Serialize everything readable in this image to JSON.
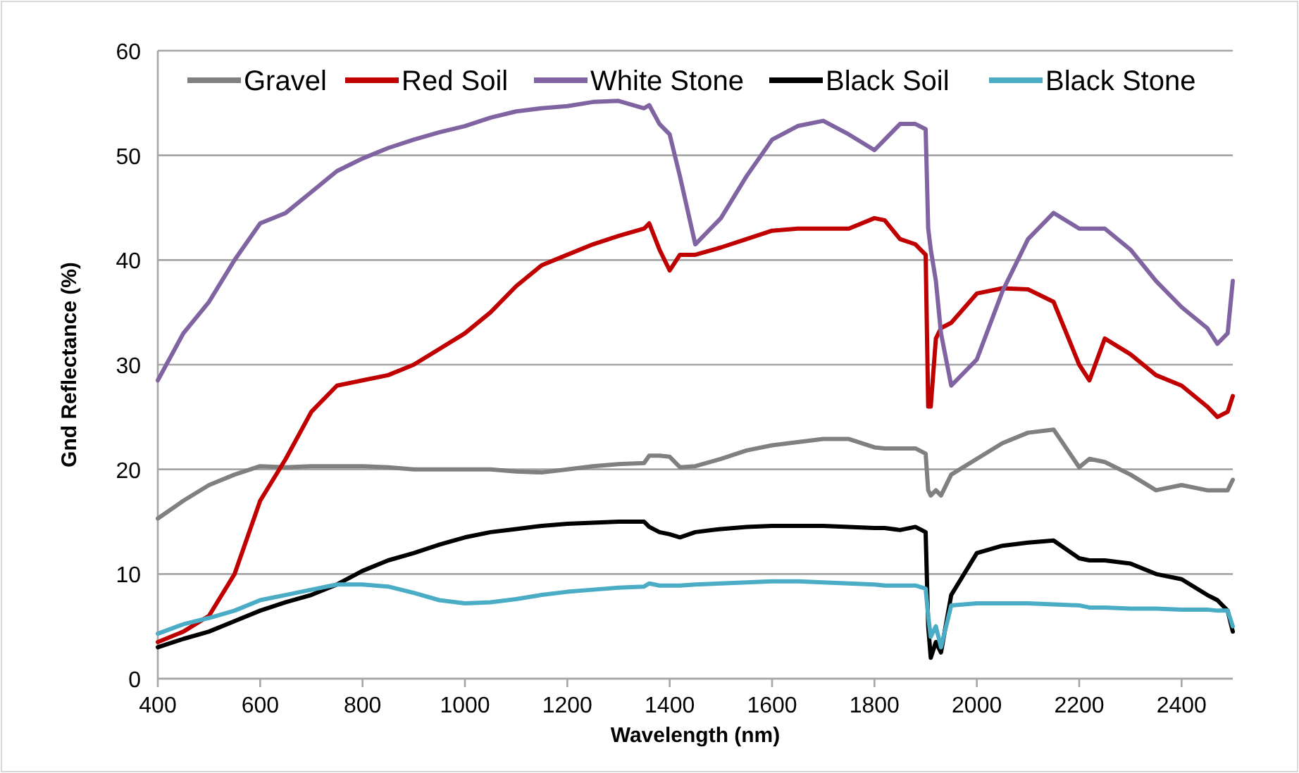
{
  "chart_data": {
    "type": "line",
    "xlabel": "Wavelength (nm)",
    "ylabel": "Gnd Reflectance (%)",
    "x": [
      400,
      450,
      500,
      550,
      600,
      650,
      700,
      750,
      800,
      850,
      900,
      950,
      1000,
      1050,
      1100,
      1150,
      1200,
      1250,
      1300,
      1350,
      1360,
      1380,
      1400,
      1420,
      1450,
      1500,
      1550,
      1600,
      1650,
      1700,
      1750,
      1800,
      1820,
      1850,
      1880,
      1900,
      1905,
      1910,
      1920,
      1930,
      1950,
      2000,
      2050,
      2100,
      2150,
      2200,
      2220,
      2250,
      2300,
      2350,
      2400,
      2450,
      2470,
      2490,
      2500
    ],
    "series": [
      {
        "name": "Gravel",
        "color": "#808080",
        "values": [
          15.3,
          17,
          18.5,
          19.5,
          20.3,
          20.2,
          20.3,
          20.3,
          20.3,
          20.2,
          20,
          20,
          20,
          20,
          19.8,
          19.7,
          20,
          20.3,
          20.5,
          20.6,
          21.3,
          21.3,
          21.2,
          20.2,
          20.3,
          21,
          21.8,
          22.3,
          22.6,
          22.9,
          22.9,
          22.1,
          22,
          22,
          22,
          21.5,
          18,
          17.5,
          18,
          17.5,
          19.5,
          21,
          22.5,
          23.5,
          23.8,
          20.2,
          21,
          20.7,
          19.5,
          18,
          18.5,
          18,
          18,
          18,
          19
        ]
      },
      {
        "name": "Red Soil",
        "color": "#c00000",
        "values": [
          3.5,
          4.5,
          6,
          10,
          17,
          21,
          25.5,
          28,
          28.5,
          29,
          30,
          31.5,
          33,
          35,
          37.5,
          39.5,
          40.5,
          41.5,
          42.3,
          43,
          43.5,
          41,
          39,
          40.5,
          40.5,
          41.2,
          42,
          42.8,
          43,
          43,
          43,
          44,
          43.8,
          42,
          41.5,
          40.5,
          26,
          26,
          32.5,
          33.5,
          34,
          36.8,
          37.3,
          37.2,
          36,
          30,
          28.5,
          32.5,
          31,
          29,
          28,
          26,
          25,
          25.5,
          27
        ]
      },
      {
        "name": "White Stone",
        "color": "#8064a2",
        "values": [
          28.5,
          33,
          36,
          40,
          43.5,
          44.5,
          46.5,
          48.5,
          49.7,
          50.7,
          51.5,
          52.2,
          52.8,
          53.6,
          54.2,
          54.5,
          54.7,
          55.1,
          55.2,
          54.5,
          54.8,
          53,
          52,
          48,
          41.5,
          44,
          48,
          51.5,
          52.8,
          53.3,
          52,
          50.5,
          51.5,
          53,
          53,
          52.5,
          43,
          41,
          38,
          33,
          28,
          30.5,
          37,
          42,
          44.5,
          43,
          43,
          43,
          41,
          38,
          35.5,
          33.5,
          32,
          33,
          38
        ]
      },
      {
        "name": "Black Soil",
        "color": "#000000",
        "values": [
          3,
          3.8,
          4.5,
          5.5,
          6.5,
          7.3,
          8,
          9,
          10.3,
          11.3,
          12,
          12.8,
          13.5,
          14,
          14.3,
          14.6,
          14.8,
          14.9,
          15,
          15,
          14.5,
          14,
          13.8,
          13.5,
          14,
          14.3,
          14.5,
          14.6,
          14.6,
          14.6,
          14.5,
          14.4,
          14.4,
          14.2,
          14.5,
          14,
          5,
          2,
          3.5,
          2.5,
          8,
          12,
          12.7,
          13,
          13.2,
          11.5,
          11.3,
          11.3,
          11,
          10,
          9.5,
          8,
          7.5,
          6.5,
          4.5
        ]
      },
      {
        "name": "Black Stone",
        "color": "#4bacc6",
        "values": [
          4.3,
          5.2,
          5.8,
          6.5,
          7.5,
          8,
          8.5,
          9,
          9,
          8.8,
          8.2,
          7.5,
          7.2,
          7.3,
          7.6,
          8,
          8.3,
          8.5,
          8.7,
          8.8,
          9.1,
          8.9,
          8.9,
          8.9,
          9,
          9.1,
          9.2,
          9.3,
          9.3,
          9.2,
          9.1,
          9,
          8.9,
          8.9,
          8.9,
          8.6,
          6,
          4,
          5,
          3,
          7,
          7.2,
          7.2,
          7.2,
          7.1,
          7,
          6.8,
          6.8,
          6.7,
          6.7,
          6.6,
          6.6,
          6.5,
          6.5,
          5
        ]
      }
    ],
    "xlim": [
      400,
      2500
    ],
    "xticks": [
      400,
      600,
      800,
      1000,
      1200,
      1400,
      1600,
      1800,
      2000,
      2200,
      2400
    ],
    "ylim": [
      0,
      60
    ],
    "yticks": [
      0,
      10,
      20,
      30,
      40,
      50,
      60
    ],
    "grid": "y",
    "legend": "top",
    "marker": "none",
    "line_style": "solid"
  }
}
